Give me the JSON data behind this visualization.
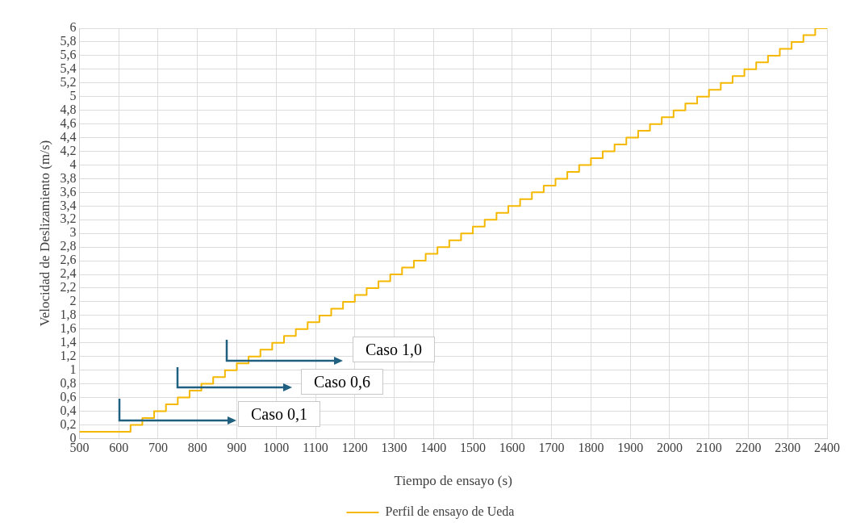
{
  "chart_data": {
    "type": "step",
    "xlabel": "Tiempo de ensayo (s)",
    "ylabel": "Velocidad de Deslizamiento (m/s)",
    "x": [
      500,
      630,
      660,
      690,
      720,
      750,
      780,
      810,
      840,
      870,
      900,
      930,
      960,
      990,
      1020,
      1050,
      1080,
      1110,
      1140,
      1170,
      1200,
      1230,
      1260,
      1290,
      1320,
      1350,
      1380,
      1410,
      1440,
      1470,
      1500,
      1530,
      1560,
      1590,
      1620,
      1650,
      1680,
      1710,
      1740,
      1770,
      1800,
      1830,
      1860,
      1890,
      1920,
      1950,
      1980,
      2010,
      2040,
      2070,
      2100,
      2130,
      2160,
      2190,
      2220,
      2250,
      2280,
      2310,
      2340,
      2370,
      2400
    ],
    "series": [
      {
        "name": "Perfil de ensayo de Ueda",
        "color": "#f5b800",
        "values": [
          0.1,
          0.2,
          0.3,
          0.4,
          0.5,
          0.6,
          0.7,
          0.8,
          0.9,
          1.0,
          1.1,
          1.2,
          1.3,
          1.4,
          1.5,
          1.6,
          1.7,
          1.8,
          1.9,
          2.0,
          2.1,
          2.2,
          2.3,
          2.4,
          2.5,
          2.6,
          2.7,
          2.8,
          2.9,
          3.0,
          3.1,
          3.2,
          3.3,
          3.4,
          3.5,
          3.6,
          3.7,
          3.8,
          3.9,
          4.0,
          4.1,
          4.2,
          4.3,
          4.4,
          4.5,
          4.6,
          4.7,
          4.8,
          4.9,
          5.0,
          5.1,
          5.2,
          5.3,
          5.4,
          5.5,
          5.6,
          5.7,
          5.8,
          5.9,
          6.0,
          6.0
        ]
      }
    ],
    "xlim": [
      500,
      2400
    ],
    "xticks": [
      500,
      600,
      700,
      800,
      900,
      1000,
      1100,
      1200,
      1300,
      1400,
      1500,
      1600,
      1700,
      1800,
      1900,
      2000,
      2100,
      2200,
      2300,
      2400
    ],
    "ylim": [
      0,
      6
    ],
    "yticks": [
      0,
      {
        "value": 0.2,
        "label": "0,2"
      },
      {
        "value": 0.4,
        "label": "0,4"
      },
      {
        "value": 0.6,
        "label": "0,6"
      },
      {
        "value": 0.8,
        "label": "0,8"
      },
      1,
      {
        "value": 1.2,
        "label": "1,2"
      },
      {
        "value": 1.4,
        "label": "1,4"
      },
      {
        "value": 1.6,
        "label": "1,6"
      },
      {
        "value": 1.8,
        "label": "1,8"
      },
      2,
      {
        "value": 2.2,
        "label": "2,2"
      },
      {
        "value": 2.4,
        "label": "2,4"
      },
      {
        "value": 2.6,
        "label": "2,6"
      },
      {
        "value": 2.8,
        "label": "2,8"
      },
      3,
      {
        "value": 3.2,
        "label": "3,2"
      },
      {
        "value": 3.4,
        "label": "3,4"
      },
      {
        "value": 3.6,
        "label": "3,6"
      },
      {
        "value": 3.8,
        "label": "3,8"
      },
      4,
      {
        "value": 4.2,
        "label": "4,2"
      },
      {
        "value": 4.4,
        "label": "4,4"
      },
      {
        "value": 4.6,
        "label": "4,6"
      },
      {
        "value": 4.8,
        "label": "4,8"
      },
      5,
      {
        "value": 5.2,
        "label": "5,2"
      },
      {
        "value": 5.4,
        "label": "5,4"
      },
      {
        "value": 5.6,
        "label": "5,6"
      },
      {
        "value": 5.8,
        "label": "5,8"
      },
      6
    ],
    "grid": true,
    "legend": "bottom",
    "marker": "none",
    "line_style": "solid",
    "annotations": [
      "Caso 0,1",
      "Caso 0,6",
      "Caso 1,0"
    ]
  }
}
